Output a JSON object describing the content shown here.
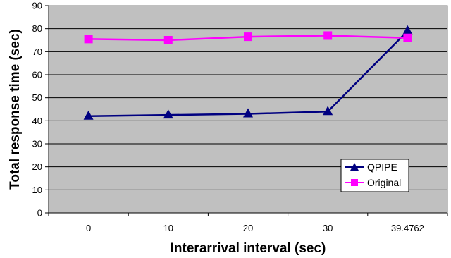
{
  "chart_data": {
    "type": "line",
    "categories": [
      "0",
      "10",
      "20",
      "30",
      "39.4762"
    ],
    "series": [
      {
        "name": "QPIPE",
        "values": [
          42,
          42.5,
          43,
          44,
          79
        ],
        "color": "#000080",
        "marker": "triangle"
      },
      {
        "name": "Original",
        "values": [
          75.5,
          75,
          76.5,
          77,
          76
        ],
        "color": "#ff00ff",
        "marker": "square"
      }
    ],
    "xlabel": "Interarrival interval (sec)",
    "ylabel": "Total response time (sec)",
    "ylim": [
      0,
      90
    ],
    "yticks": [
      0,
      10,
      20,
      30,
      40,
      50,
      60,
      70,
      80,
      90
    ],
    "grid": true,
    "plot_background": "#c0c0c0",
    "legend_position": "bottom-right"
  }
}
